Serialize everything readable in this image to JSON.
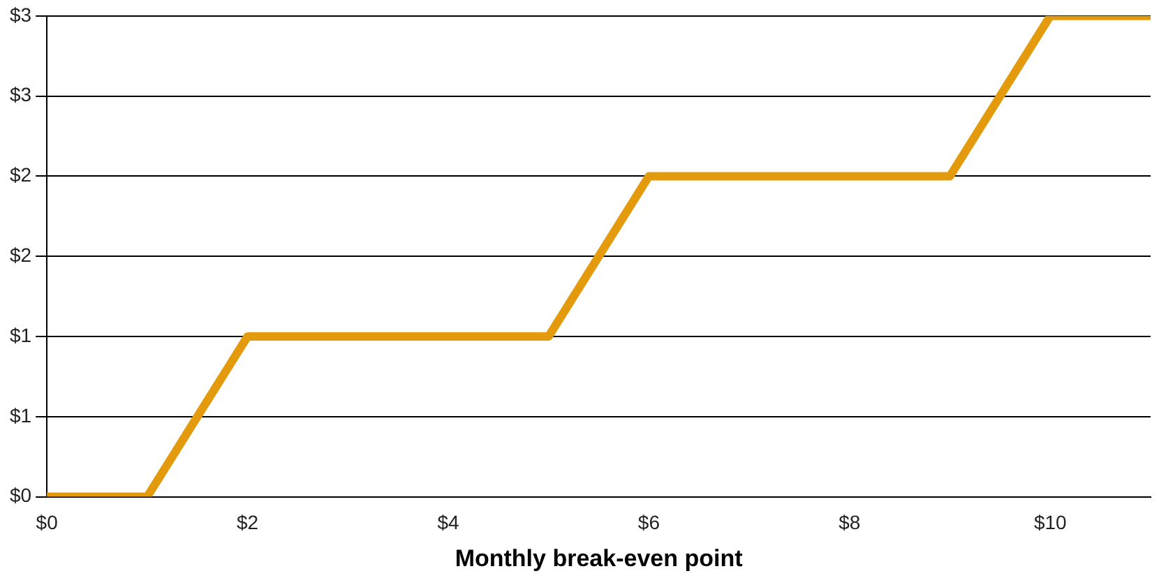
{
  "chart_data": {
    "type": "line",
    "xlabel": "Monthly break-even point",
    "x": [
      0,
      1,
      2,
      5,
      6,
      9,
      10,
      11
    ],
    "series": [
      {
        "color": "#e39a0c",
        "values": [
          0,
          0,
          1,
          1,
          2,
          2,
          3,
          3
        ]
      }
    ],
    "xlim": [
      0,
      11
    ],
    "xticks": [
      {
        "value": 0,
        "label": "$0"
      },
      {
        "value": 2,
        "label": "$2"
      },
      {
        "value": 4,
        "label": "$4"
      },
      {
        "value": 6,
        "label": "$6"
      },
      {
        "value": 8,
        "label": "$8"
      },
      {
        "value": 10,
        "label": "$10"
      }
    ],
    "ylim": [
      0,
      3
    ],
    "yticks": [
      {
        "value": 0,
        "label": "$0"
      },
      {
        "value": 0.5,
        "label": "$1"
      },
      {
        "value": 1,
        "label": "$1"
      },
      {
        "value": 1.5,
        "label": "$2"
      },
      {
        "value": 2,
        "label": "$2"
      },
      {
        "value": 2.5,
        "label": "$3"
      },
      {
        "value": 3,
        "label": "$3"
      }
    ],
    "grid": "y",
    "legend": false,
    "marker": "none",
    "line_style": "solid"
  }
}
